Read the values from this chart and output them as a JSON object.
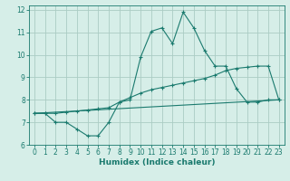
{
  "xlabel": "Humidex (Indice chaleur)",
  "ylabel": "",
  "background_color": "#d6eee8",
  "grid_color": "#aaccc4",
  "line_color": "#1a7a6e",
  "xlim": [
    -0.5,
    23.5
  ],
  "ylim": [
    6,
    12.2
  ],
  "xticks": [
    0,
    1,
    2,
    3,
    4,
    5,
    6,
    7,
    8,
    9,
    10,
    11,
    12,
    13,
    14,
    15,
    16,
    17,
    18,
    19,
    20,
    21,
    22,
    23
  ],
  "yticks": [
    6,
    7,
    8,
    9,
    10,
    11,
    12
  ],
  "line1_x": [
    0,
    1,
    2,
    3,
    4,
    5,
    6,
    7,
    8,
    9,
    10,
    11,
    12,
    13,
    14,
    15,
    16,
    17,
    18,
    19,
    20,
    21,
    22,
    23
  ],
  "line1_y": [
    7.4,
    7.4,
    7.0,
    7.0,
    6.7,
    6.4,
    6.4,
    7.0,
    7.9,
    8.0,
    9.9,
    11.05,
    11.2,
    10.5,
    11.9,
    11.2,
    10.2,
    9.5,
    9.5,
    8.5,
    7.9,
    7.9,
    8.0,
    8.0
  ],
  "line2_x": [
    0,
    1,
    2,
    3,
    4,
    5,
    6,
    7,
    8,
    9,
    10,
    11,
    12,
    13,
    14,
    15,
    16,
    17,
    18,
    19,
    20,
    21,
    22,
    23
  ],
  "line2_y": [
    7.4,
    7.4,
    7.4,
    7.45,
    7.5,
    7.55,
    7.6,
    7.65,
    7.9,
    8.1,
    8.3,
    8.45,
    8.55,
    8.65,
    8.75,
    8.85,
    8.95,
    9.1,
    9.3,
    9.4,
    9.45,
    9.5,
    9.5,
    8.0
  ],
  "line3_x": [
    0,
    23
  ],
  "line3_y": [
    7.4,
    8.0
  ]
}
